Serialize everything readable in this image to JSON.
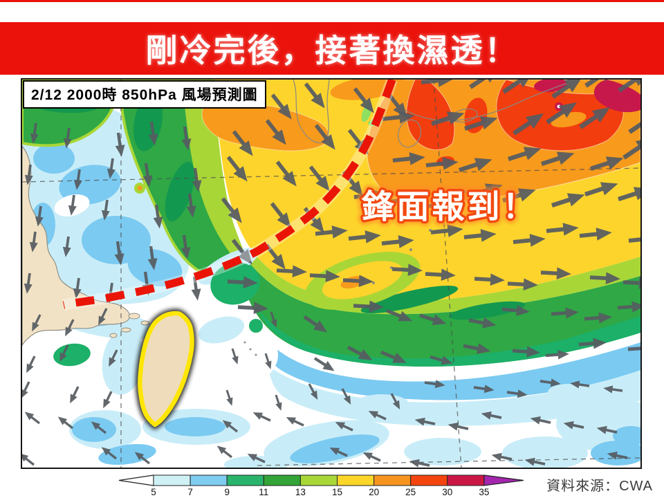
{
  "banner": {
    "title": "剛冷完後，接著換濕透！",
    "bg_color": "#ea120b",
    "text_color": "#ffffff"
  },
  "map": {
    "caption": "2/12  2000時  850hPa 風場預測圖",
    "annotation": "鋒面報到！"
  },
  "legend": {
    "unit_ticks": [
      "5",
      "7",
      "9",
      "11",
      "13",
      "15",
      "20",
      "25",
      "30",
      "35"
    ],
    "segment_colors": [
      "#cff1f6",
      "#7fcdf0",
      "#29b46c",
      "#33a437",
      "#a8d838",
      "#fdd62a",
      "#f79420",
      "#f4450e",
      "#cb1745"
    ],
    "left_arrow_color": "#ffffff",
    "right_arrow_color": "#a426ae"
  },
  "source": {
    "text": "資料來源：CWA"
  },
  "colors": {
    "front_line": "#ea1507",
    "taiwan_outline": "#ffe604",
    "wind_arrow": "#565b61",
    "land": "#f2e2c5"
  }
}
